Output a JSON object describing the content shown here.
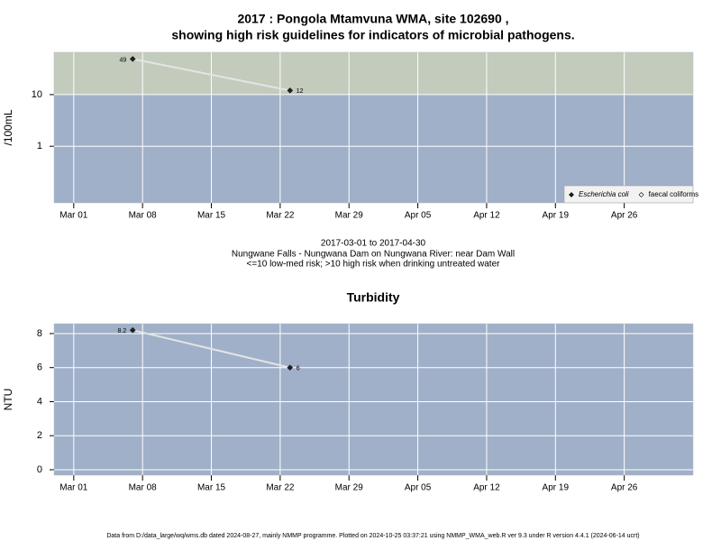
{
  "chart_data": [
    {
      "type": "line",
      "title": "2017 : Pongola Mtamvuna WMA, site 102690 ,",
      "subtitle": "showing high risk guidelines for indicators of microbial pathogens.",
      "ylabel": "/100mL",
      "log_y": true,
      "threshold": 10,
      "grid": true,
      "legend": "bottom-right",
      "notes": [
        "2017-03-01 to 2017-04-30",
        "Nungwane Falls - Nungwana Dam on Nungwana River: near Dam Wall",
        "<=10 low-med risk; >10 high risk when drinking untreated water"
      ],
      "x": [
        "2017-03-07",
        "2017-03-23"
      ],
      "series": [
        {
          "name": "Escherichia coli",
          "color": "#222222",
          "values": [
            49,
            12
          ]
        },
        {
          "name": "faecal coliforms",
          "color": "#ffffff",
          "values": [
            null,
            null
          ]
        }
      ],
      "xlim": [
        "2017-02-27",
        "2017-05-03"
      ],
      "xticks": [
        {
          "value": "2017-03-01",
          "label": "Mar 01"
        },
        {
          "value": "2017-03-08",
          "label": "Mar 08"
        },
        {
          "value": "2017-03-15",
          "label": "Mar 15"
        },
        {
          "value": "2017-03-22",
          "label": "Mar 22"
        },
        {
          "value": "2017-03-29",
          "label": "Mar 29"
        },
        {
          "value": "2017-04-05",
          "label": "Apr 05"
        },
        {
          "value": "2017-04-12",
          "label": "Apr 12"
        },
        {
          "value": "2017-04-19",
          "label": "Apr 19"
        },
        {
          "value": "2017-04-26",
          "label": "Apr 26"
        }
      ],
      "ylim": [
        0.08,
        66
      ],
      "yticks": [
        1,
        10
      ]
    },
    {
      "type": "line",
      "title": "Turbidity",
      "ylabel": "NTU",
      "grid": true,
      "x": [
        "2017-03-07",
        "2017-03-23"
      ],
      "series": [
        {
          "name": "Turbidity",
          "color": "#222222",
          "values": [
            8.2,
            6
          ]
        }
      ],
      "xlim": [
        "2017-02-27",
        "2017-05-03"
      ],
      "xticks": [
        {
          "value": "2017-03-01",
          "label": "Mar 01"
        },
        {
          "value": "2017-03-08",
          "label": "Mar 08"
        },
        {
          "value": "2017-03-15",
          "label": "Mar 15"
        },
        {
          "value": "2017-03-22",
          "label": "Mar 22"
        },
        {
          "value": "2017-03-29",
          "label": "Mar 29"
        },
        {
          "value": "2017-04-05",
          "label": "Apr 05"
        },
        {
          "value": "2017-04-12",
          "label": "Apr 12"
        },
        {
          "value": "2017-04-19",
          "label": "Apr 19"
        },
        {
          "value": "2017-04-26",
          "label": "Apr 26"
        }
      ],
      "ylim": [
        -0.32,
        8.58
      ],
      "yticks": [
        0,
        2,
        4,
        6,
        8
      ]
    }
  ],
  "footer": "Data from D:/data_large/wq/wms.db dated 2024-08-27, mainly NMMP programme. Plotted on 2024-10-25 03:37:21 using NMMP_WMA_web.R ver 9.3 under R version 4.4.1 (2024-06-14 ucrt)"
}
